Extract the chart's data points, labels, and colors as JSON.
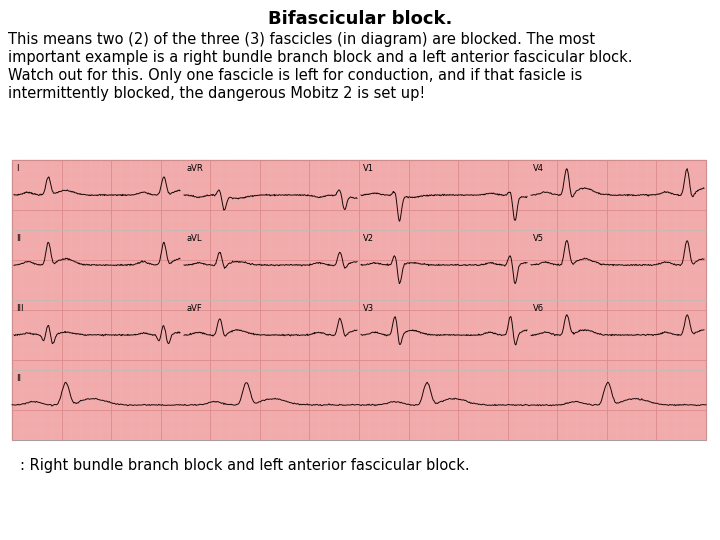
{
  "title": "Bifascicular block.",
  "title_fontsize": 13,
  "body_text_line1": "This means two (2) of the three (3) fascicles (in diagram) are blocked. The most",
  "body_text_line2": "important example is a right bundle branch block and a left anterior fascicular block.",
  "body_text_line3": "Watch out for this. Only one fascicle is left for conduction, and if that fasicle is",
  "body_text_line4": "intermittently blocked, the dangerous Mobitz 2 is set up!",
  "caption": ": Right bundle branch block and left anterior fascicular block.",
  "font_size_body": 10.5,
  "font_size_caption": 10.5,
  "bg_color": "#ffffff",
  "ecg_bg_color": "#f2aaaa",
  "ecg_grid_major_color": "#d98888",
  "ecg_grid_minor_color": "#ebbcbc",
  "ecg_line_color": "#1a0808",
  "font_family": "DejaVu Sans"
}
